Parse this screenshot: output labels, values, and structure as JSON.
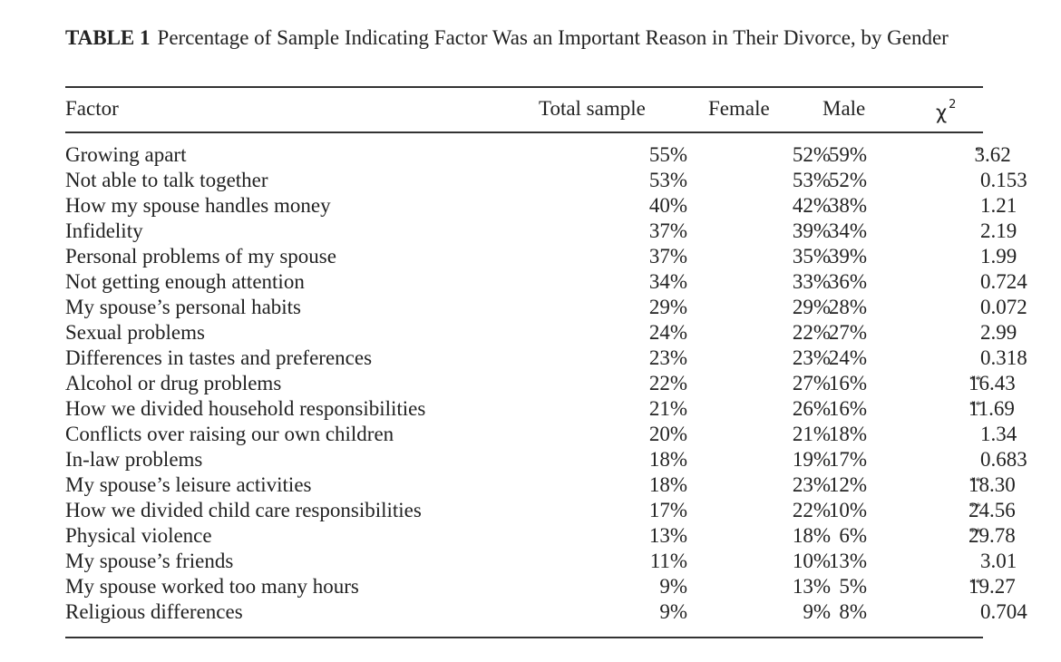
{
  "caption": {
    "label": "TABLE 1",
    "text": "Percentage of Sample Indicating Factor Was an Important Reason in Their Divorce, by Gender"
  },
  "headers": {
    "factor": "Factor",
    "total": "Total sample",
    "female": "Female",
    "male": "Male",
    "chi": "χ",
    "chi_sup": "2"
  },
  "rows": [
    {
      "factor": "Growing apart",
      "total": "55%",
      "female": "52%",
      "male": "59%",
      "chi": "3.62",
      "stars": "*"
    },
    {
      "factor": "Not able to talk together",
      "total": "53%",
      "female": "53%",
      "male": "52%",
      "chi": "0.153",
      "stars": ""
    },
    {
      "factor": "How my spouse handles money",
      "total": "40%",
      "female": "42%",
      "male": "38%",
      "chi": "1.21",
      "stars": ""
    },
    {
      "factor": "Infidelity",
      "total": "37%",
      "female": "39%",
      "male": "34%",
      "chi": "2.19",
      "stars": ""
    },
    {
      "factor": "Personal problems of my spouse",
      "total": "37%",
      "female": "35%",
      "male": "39%",
      "chi": "1.99",
      "stars": ""
    },
    {
      "factor": "Not getting enough attention",
      "total": "34%",
      "female": "33%",
      "male": "36%",
      "chi": "0.724",
      "stars": ""
    },
    {
      "factor": "My spouse’s personal habits",
      "total": "29%",
      "female": "29%",
      "male": "28%",
      "chi": "0.072",
      "stars": ""
    },
    {
      "factor": "Sexual problems",
      "total": "24%",
      "female": "22%",
      "male": "27%",
      "chi": "2.99",
      "stars": ""
    },
    {
      "factor": "Differences in tastes and preferences",
      "total": "23%",
      "female": "23%",
      "male": "24%",
      "chi": "0.318",
      "stars": ""
    },
    {
      "factor": "Alcohol or drug problems",
      "total": "22%",
      "female": "27%",
      "male": "16%",
      "chi": "16.43",
      "stars": "**"
    },
    {
      "factor": "How we divided household responsibilities",
      "total": "21%",
      "female": "26%",
      "male": "16%",
      "chi": "11.69",
      "stars": "**"
    },
    {
      "factor": "Conflicts over raising our own children",
      "total": "20%",
      "female": "21%",
      "male": "18%",
      "chi": "1.34",
      "stars": ""
    },
    {
      "factor": "In-law problems",
      "total": "18%",
      "female": "19%",
      "male": "17%",
      "chi": "0.683",
      "stars": ""
    },
    {
      "factor": "My spouse’s leisure activities",
      "total": "18%",
      "female": "23%",
      "male": "12%",
      "chi": "18.30",
      "stars": "**"
    },
    {
      "factor": "How we divided child care responsibilities",
      "total": "17%",
      "female": "22%",
      "male": "10%",
      "chi": "24.56",
      "stars": "**"
    },
    {
      "factor": "Physical violence",
      "total": "13%",
      "female": "18%",
      "male": "6%",
      "chi": "29.78",
      "stars": "**"
    },
    {
      "factor": "My spouse’s friends",
      "total": "11%",
      "female": "10%",
      "male": "13%",
      "chi": "3.01",
      "stars": ""
    },
    {
      "factor": "My spouse worked too many hours",
      "total": "9%",
      "female": "13%",
      "male": "5%",
      "chi": "19.27",
      "stars": "**"
    },
    {
      "factor": "Religious differences",
      "total": "9%",
      "female": "9%",
      "male": "8%",
      "chi": "0.704",
      "stars": ""
    }
  ]
}
